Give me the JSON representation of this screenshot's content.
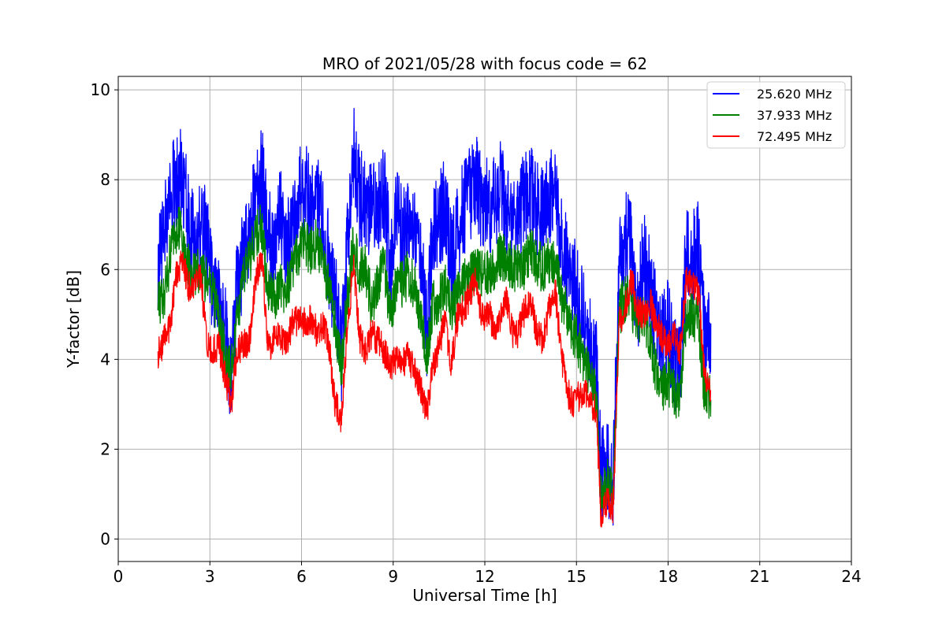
{
  "chart_data": {
    "type": "line",
    "title": "MRO of 2021/05/28 with focus code = 62",
    "xlabel": "Universal Time [h]",
    "ylabel": "Y-factor [dB]",
    "xlim": [
      0,
      24
    ],
    "ylim": [
      -0.5,
      10.3
    ],
    "xticks": [
      0,
      3,
      6,
      9,
      12,
      15,
      18,
      21,
      24
    ],
    "yticks": [
      0,
      2,
      4,
      6,
      8,
      10
    ],
    "grid": true,
    "legend_position": "top-right",
    "series": [
      {
        "name": "25.620 MHz",
        "color": "#0000ff",
        "x": [
          1.3,
          1.5,
          1.7,
          1.9,
          2.1,
          2.3,
          2.5,
          2.7,
          2.9,
          3.1,
          3.3,
          3.5,
          3.7,
          3.9,
          4.1,
          4.3,
          4.5,
          4.7,
          4.9,
          5.1,
          5.3,
          5.5,
          5.7,
          5.9,
          6.1,
          6.3,
          6.5,
          6.7,
          6.9,
          7.1,
          7.3,
          7.5,
          7.7,
          7.9,
          8.1,
          8.3,
          8.5,
          8.7,
          8.9,
          9.1,
          9.3,
          9.5,
          9.7,
          9.9,
          10.1,
          10.3,
          10.5,
          10.7,
          10.9,
          11.1,
          11.3,
          11.5,
          11.7,
          11.9,
          12.1,
          12.3,
          12.5,
          12.7,
          12.9,
          13.1,
          13.3,
          13.5,
          13.7,
          13.9,
          14.1,
          14.3,
          14.5,
          14.7,
          14.9,
          15.1,
          15.3,
          15.5,
          15.65,
          15.8,
          16.0,
          16.2,
          16.4,
          16.6,
          16.8,
          17.0,
          17.2,
          17.4,
          17.6,
          17.8,
          18.0,
          18.2,
          18.4,
          18.6,
          18.8,
          19.0,
          19.2,
          19.4
        ],
        "y": [
          6.0,
          6.8,
          7.6,
          8.0,
          8.2,
          7.0,
          6.5,
          7.2,
          6.6,
          5.6,
          5.2,
          4.6,
          3.6,
          5.8,
          6.2,
          6.6,
          7.8,
          8.1,
          6.9,
          6.3,
          7.2,
          6.5,
          6.8,
          7.6,
          7.9,
          7.3,
          7.6,
          7.0,
          6.1,
          5.4,
          4.0,
          6.4,
          8.6,
          7.6,
          7.5,
          7.3,
          7.2,
          7.8,
          6.2,
          7.2,
          6.8,
          7.1,
          6.9,
          6.2,
          4.7,
          6.8,
          7.1,
          7.4,
          6.2,
          6.8,
          7.4,
          7.6,
          8.1,
          7.5,
          7.4,
          7.5,
          7.8,
          7.3,
          7.2,
          7.3,
          7.6,
          7.8,
          7.3,
          7.2,
          7.7,
          7.6,
          6.6,
          6.2,
          5.7,
          5.3,
          4.8,
          4.2,
          3.8,
          1.5,
          1.7,
          1.2,
          6.3,
          6.7,
          6.5,
          5.2,
          6.2,
          5.6,
          4.9,
          4.4,
          4.7,
          3.8,
          4.1,
          6.3,
          6.2,
          6.5,
          4.4,
          4.8
        ]
      },
      {
        "name": "37.933 MHz",
        "color": "#008000",
        "x": [
          1.3,
          1.5,
          1.7,
          1.9,
          2.1,
          2.3,
          2.5,
          2.7,
          2.9,
          3.1,
          3.3,
          3.5,
          3.7,
          3.9,
          4.1,
          4.3,
          4.5,
          4.7,
          4.9,
          5.1,
          5.3,
          5.5,
          5.7,
          5.9,
          6.1,
          6.3,
          6.5,
          6.7,
          6.9,
          7.1,
          7.3,
          7.5,
          7.7,
          7.9,
          8.1,
          8.3,
          8.5,
          8.7,
          8.9,
          9.1,
          9.3,
          9.5,
          9.7,
          9.9,
          10.1,
          10.3,
          10.5,
          10.7,
          10.9,
          11.1,
          11.3,
          11.5,
          11.7,
          11.9,
          12.1,
          12.3,
          12.5,
          12.7,
          12.9,
          13.1,
          13.3,
          13.5,
          13.7,
          13.9,
          14.1,
          14.3,
          14.5,
          14.7,
          14.9,
          15.1,
          15.3,
          15.5,
          15.65,
          15.8,
          16.0,
          16.2,
          16.4,
          16.6,
          16.8,
          17.0,
          17.2,
          17.4,
          17.6,
          17.8,
          18.0,
          18.2,
          18.4,
          18.6,
          18.8,
          19.0,
          19.2,
          19.4
        ],
        "y": [
          5.2,
          5.4,
          6.3,
          6.9,
          6.8,
          6.1,
          5.8,
          6.1,
          5.7,
          5.5,
          4.8,
          4.2,
          3.8,
          5.0,
          5.8,
          6.2,
          6.7,
          7.0,
          5.5,
          5.4,
          5.6,
          5.5,
          6.1,
          6.4,
          6.6,
          6.4,
          6.6,
          6.3,
          5.5,
          4.8,
          3.8,
          5.3,
          6.6,
          5.9,
          6.0,
          5.2,
          5.8,
          6.1,
          5.0,
          5.6,
          5.7,
          5.9,
          5.6,
          5.0,
          4.0,
          5.2,
          5.3,
          5.6,
          5.1,
          5.4,
          5.7,
          5.8,
          6.1,
          5.9,
          5.9,
          6.0,
          6.3,
          6.2,
          6.1,
          6.0,
          6.1,
          6.4,
          6.2,
          6.0,
          6.2,
          6.2,
          5.4,
          5.0,
          4.6,
          4.3,
          3.9,
          3.5,
          3.1,
          0.9,
          1.3,
          1.0,
          5.0,
          5.4,
          5.2,
          4.8,
          5.0,
          4.5,
          3.7,
          3.3,
          3.5,
          3.2,
          3.2,
          5.0,
          5.0,
          4.8,
          3.2,
          3.1
        ]
      },
      {
        "name": "72.495 MHz",
        "color": "#ff0000",
        "x": [
          1.3,
          1.5,
          1.7,
          1.9,
          2.1,
          2.3,
          2.5,
          2.7,
          2.9,
          3.1,
          3.3,
          3.5,
          3.7,
          3.9,
          4.1,
          4.3,
          4.5,
          4.7,
          4.9,
          5.1,
          5.3,
          5.5,
          5.7,
          5.9,
          6.1,
          6.3,
          6.5,
          6.7,
          6.9,
          7.1,
          7.3,
          7.5,
          7.7,
          7.9,
          8.1,
          8.3,
          8.5,
          8.7,
          8.9,
          9.1,
          9.3,
          9.5,
          9.7,
          9.9,
          10.1,
          10.3,
          10.5,
          10.7,
          10.9,
          11.1,
          11.3,
          11.5,
          11.7,
          11.9,
          12.1,
          12.3,
          12.5,
          12.7,
          12.9,
          13.1,
          13.3,
          13.5,
          13.7,
          13.9,
          14.1,
          14.3,
          14.5,
          14.7,
          14.9,
          15.1,
          15.3,
          15.5,
          15.65,
          15.8,
          16.0,
          16.2,
          16.4,
          16.6,
          16.8,
          17.0,
          17.2,
          17.4,
          17.6,
          17.8,
          18.0,
          18.2,
          18.4,
          18.6,
          18.8,
          19.0,
          19.2,
          19.4
        ],
        "y": [
          4.1,
          4.4,
          4.7,
          5.9,
          6.2,
          5.6,
          5.7,
          5.8,
          4.4,
          4.2,
          4.3,
          3.6,
          3.0,
          4.2,
          4.3,
          4.4,
          5.8,
          6.3,
          4.3,
          4.4,
          4.5,
          4.3,
          4.8,
          4.9,
          4.8,
          4.9,
          4.6,
          4.8,
          4.3,
          3.0,
          2.7,
          4.7,
          6.1,
          4.5,
          4.2,
          4.6,
          4.4,
          4.2,
          3.8,
          4.0,
          3.9,
          4.1,
          3.7,
          3.4,
          2.8,
          3.8,
          4.3,
          4.9,
          3.8,
          4.9,
          5.1,
          5.4,
          5.8,
          4.9,
          5.1,
          4.7,
          4.8,
          5.4,
          4.6,
          4.6,
          5.1,
          5.3,
          4.6,
          4.4,
          5.1,
          5.6,
          4.1,
          3.3,
          3.0,
          3.2,
          3.3,
          3.0,
          2.9,
          0.5,
          0.9,
          0.7,
          4.8,
          5.2,
          5.8,
          5.1,
          5.0,
          5.3,
          4.8,
          4.5,
          4.3,
          4.5,
          4.2,
          5.8,
          5.7,
          5.5,
          3.5,
          3.3
        ]
      }
    ]
  }
}
